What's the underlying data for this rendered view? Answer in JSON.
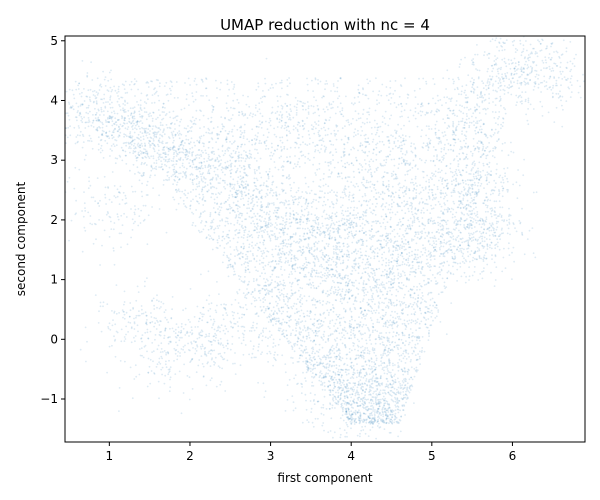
{
  "chart_data": {
    "type": "scatter",
    "title": "UMAP reduction with nc = 4",
    "xlabel": "first component",
    "ylabel": "second component",
    "xlim": [
      0.45,
      6.9
    ],
    "ylim": [
      -1.72,
      5.08
    ],
    "xticks": [
      1,
      2,
      3,
      4,
      5,
      6
    ],
    "yticks": [
      -1,
      0,
      1,
      2,
      3,
      4,
      5
    ],
    "xtick_labels": [
      "1",
      "2",
      "3",
      "4",
      "5",
      "6"
    ],
    "ytick_labels": [
      "−1",
      "0",
      "1",
      "2",
      "3",
      "4",
      "5"
    ],
    "grid": false,
    "legend": "none",
    "marker_color": "#1f77b4",
    "marker_alpha": 0.15,
    "point_count": 9000,
    "series": [
      {
        "points": [
          [
            0.75,
            3.8
          ],
          [
            0.9,
            3.7
          ],
          [
            1.2,
            3.5
          ],
          [
            1.5,
            3.3
          ],
          [
            1.7,
            3.0
          ],
          [
            2.0,
            3.1
          ],
          [
            2.3,
            2.9
          ],
          [
            2.6,
            2.5
          ],
          [
            3.0,
            2.2
          ],
          [
            3.5,
            1.9
          ],
          [
            4.0,
            1.8
          ],
          [
            4.5,
            1.6
          ],
          [
            5.0,
            1.5
          ],
          [
            5.5,
            1.6
          ],
          [
            5.7,
            1.7
          ],
          [
            5.4,
            3.5
          ],
          [
            5.5,
            2.8
          ],
          [
            5.5,
            2.0
          ],
          [
            5.6,
            2.4
          ],
          [
            6.2,
            4.6
          ],
          [
            6.4,
            4.4
          ],
          [
            5.8,
            4.4
          ],
          [
            3.0,
            1.6
          ],
          [
            3.5,
            1.3
          ],
          [
            4.0,
            1.0
          ],
          [
            4.5,
            0.6
          ],
          [
            3.0,
            0.5
          ],
          [
            2.5,
            0.2
          ],
          [
            2.2,
            -0.05
          ],
          [
            1.7,
            -0.25
          ],
          [
            3.5,
            -0.5
          ],
          [
            4.0,
            -0.9
          ],
          [
            4.2,
            -1.3
          ],
          [
            1.3,
            0.3
          ],
          [
            1.0,
            2.1
          ],
          [
            4.8,
            2.5
          ],
          [
            4.2,
            3.2
          ],
          [
            3.2,
            3.5
          ]
        ]
      }
    ]
  }
}
